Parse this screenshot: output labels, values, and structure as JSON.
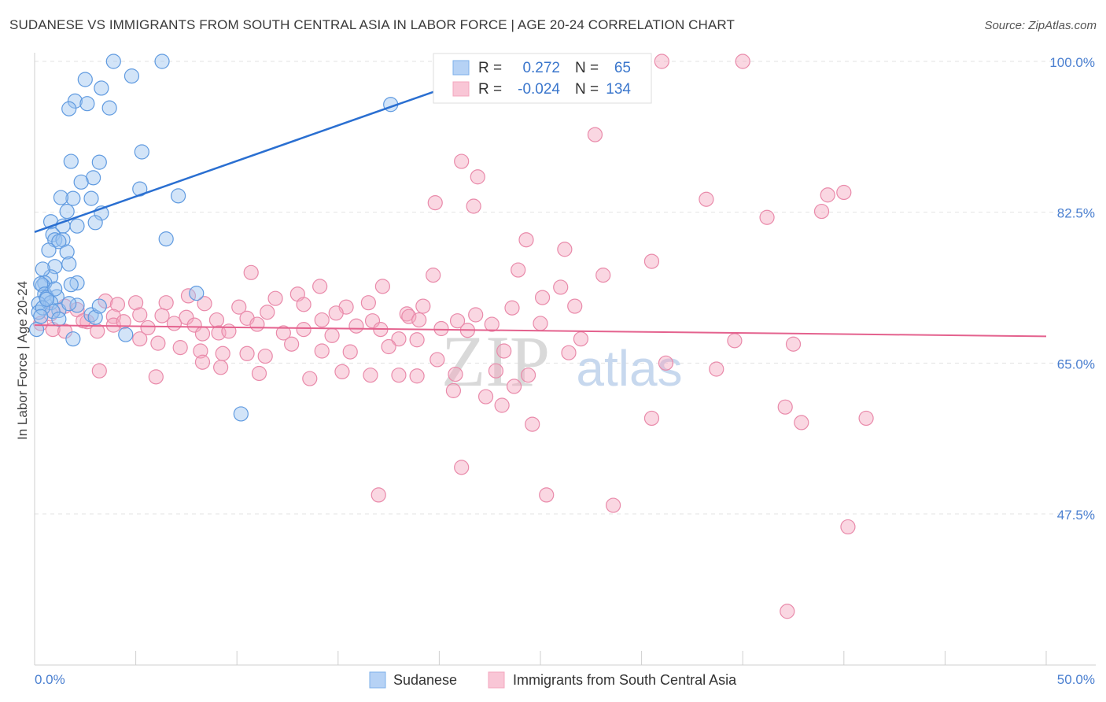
{
  "title": "SUDANESE VS IMMIGRANTS FROM SOUTH CENTRAL ASIA IN LABOR FORCE | AGE 20-24 CORRELATION CHART",
  "source": "Source: ZipAtlas.com",
  "watermark": {
    "zip": "ZIP",
    "atlas": "atlas"
  },
  "chart_data": {
    "type": "scatter",
    "title": "SUDANESE VS IMMIGRANTS FROM SOUTH CENTRAL ASIA IN LABOR FORCE | AGE 20-24 CORRELATION CHART",
    "ylabel": "In Labor Force | Age 20-24",
    "xlim": [
      0,
      50
    ],
    "ylim": [
      31,
      103
    ],
    "x_tick_labels": [
      "0.0%",
      "50.0%"
    ],
    "y_ticks": [
      47.5,
      65.0,
      82.5,
      100.0
    ],
    "y_tick_labels": [
      "47.5%",
      "65.0%",
      "82.5%",
      "100.0%"
    ],
    "grid": "horizontal dashed",
    "legend_position": "top-center",
    "colors": {
      "blue": "#7eb0ea",
      "blue_line": "#2a6fd1",
      "pink": "#f4a7bf",
      "pink_line": "#e4628e",
      "tick": "#4a7fd0"
    },
    "stats": [
      {
        "r_label": "R =",
        "r": "0.272",
        "n_label": "N =",
        "n": "65"
      },
      {
        "r_label": "R =",
        "r": "-0.024",
        "n_label": "N =",
        "n": "134"
      }
    ],
    "series": [
      {
        "name": "Sudanese",
        "color": "#7eb0ea",
        "trend": {
          "x": [
            0,
            20
          ],
          "y": 80.2,
          "y_end": 96.7
        },
        "points": [
          [
            3.9,
            100
          ],
          [
            6.3,
            100
          ],
          [
            2.5,
            97.9
          ],
          [
            4.8,
            98.3
          ],
          [
            3.3,
            96.9
          ],
          [
            2.0,
            95.4
          ],
          [
            1.7,
            94.5
          ],
          [
            2.6,
            95.1
          ],
          [
            3.7,
            94.6
          ],
          [
            17.6,
            95.0
          ],
          [
            5.3,
            89.5
          ],
          [
            1.8,
            88.4
          ],
          [
            3.2,
            88.3
          ],
          [
            2.9,
            86.5
          ],
          [
            2.3,
            86.0
          ],
          [
            5.2,
            85.2
          ],
          [
            7.1,
            84.4
          ],
          [
            1.9,
            84.1
          ],
          [
            1.3,
            84.2
          ],
          [
            2.8,
            84.1
          ],
          [
            1.6,
            82.6
          ],
          [
            3.3,
            82.4
          ],
          [
            3.0,
            81.3
          ],
          [
            0.8,
            81.4
          ],
          [
            1.4,
            80.9
          ],
          [
            2.1,
            80.9
          ],
          [
            0.9,
            79.9
          ],
          [
            6.5,
            79.4
          ],
          [
            1.0,
            79.3
          ],
          [
            1.4,
            79.3
          ],
          [
            1.2,
            79.1
          ],
          [
            0.7,
            78.1
          ],
          [
            1.6,
            77.9
          ],
          [
            1.7,
            76.5
          ],
          [
            1.0,
            76.2
          ],
          [
            0.8,
            75.0
          ],
          [
            0.4,
            75.9
          ],
          [
            0.5,
            74.3
          ],
          [
            2.1,
            74.3
          ],
          [
            0.4,
            74.0
          ],
          [
            0.3,
            74.2
          ],
          [
            8.0,
            73.1
          ],
          [
            0.5,
            73.0
          ],
          [
            1.1,
            72.7
          ],
          [
            0.6,
            72.6
          ],
          [
            0.8,
            72.0
          ],
          [
            0.2,
            71.9
          ],
          [
            1.2,
            71.1
          ],
          [
            2.1,
            71.7
          ],
          [
            0.9,
            71.0
          ],
          [
            1.7,
            71.9
          ],
          [
            1.2,
            70.1
          ],
          [
            2.8,
            70.6
          ],
          [
            0.2,
            70.9
          ],
          [
            0.4,
            71.4
          ],
          [
            3.0,
            70.3
          ],
          [
            4.5,
            68.3
          ],
          [
            1.9,
            67.8
          ],
          [
            0.1,
            68.9
          ],
          [
            10.2,
            59.1
          ],
          [
            1.0,
            73.6
          ],
          [
            0.6,
            72.4
          ],
          [
            1.8,
            74.1
          ],
          [
            3.2,
            71.6
          ],
          [
            0.3,
            70.4
          ]
        ]
      },
      {
        "name": "Immigrants from South Central Asia",
        "color": "#f4a7bf",
        "trend": {
          "x": [
            0,
            50
          ],
          "y": 69.4,
          "y_end": 68.1
        },
        "points": [
          [
            24.6,
            100
          ],
          [
            31.0,
            100
          ],
          [
            35.0,
            100
          ],
          [
            27.7,
            91.5
          ],
          [
            21.1,
            88.4
          ],
          [
            21.9,
            86.6
          ],
          [
            40.0,
            84.8
          ],
          [
            39.2,
            84.5
          ],
          [
            33.2,
            84.0
          ],
          [
            19.8,
            83.6
          ],
          [
            21.7,
            83.2
          ],
          [
            38.9,
            82.6
          ],
          [
            36.2,
            81.9
          ],
          [
            24.3,
            79.3
          ],
          [
            26.2,
            78.2
          ],
          [
            30.5,
            76.8
          ],
          [
            23.9,
            75.8
          ],
          [
            28.1,
            75.2
          ],
          [
            10.7,
            75.5
          ],
          [
            19.7,
            75.2
          ],
          [
            14.1,
            73.9
          ],
          [
            17.2,
            73.9
          ],
          [
            25.1,
            72.6
          ],
          [
            26.0,
            73.8
          ],
          [
            7.6,
            72.8
          ],
          [
            13.0,
            73.0
          ],
          [
            3.5,
            72.2
          ],
          [
            4.1,
            71.8
          ],
          [
            5.0,
            72.0
          ],
          [
            6.5,
            72.0
          ],
          [
            8.4,
            71.9
          ],
          [
            10.1,
            71.5
          ],
          [
            11.9,
            72.5
          ],
          [
            13.3,
            71.8
          ],
          [
            15.4,
            71.5
          ],
          [
            16.5,
            72.0
          ],
          [
            18.4,
            70.7
          ],
          [
            19.2,
            71.6
          ],
          [
            23.6,
            71.4
          ],
          [
            26.7,
            71.6
          ],
          [
            1.5,
            71.6
          ],
          [
            2.1,
            71.2
          ],
          [
            3.9,
            70.4
          ],
          [
            5.2,
            70.6
          ],
          [
            6.3,
            70.5
          ],
          [
            7.5,
            70.3
          ],
          [
            9.0,
            70.0
          ],
          [
            10.5,
            70.2
          ],
          [
            11.5,
            70.9
          ],
          [
            14.2,
            70.0
          ],
          [
            14.9,
            70.8
          ],
          [
            16.7,
            69.9
          ],
          [
            18.5,
            70.4
          ],
          [
            19.0,
            70.0
          ],
          [
            20.9,
            69.9
          ],
          [
            21.8,
            70.6
          ],
          [
            0.8,
            70.7
          ],
          [
            2.6,
            69.8
          ],
          [
            3.9,
            69.4
          ],
          [
            4.4,
            69.8
          ],
          [
            5.6,
            69.1
          ],
          [
            6.9,
            69.6
          ],
          [
            7.9,
            69.4
          ],
          [
            8.3,
            68.4
          ],
          [
            9.1,
            68.5
          ],
          [
            9.6,
            68.7
          ],
          [
            11.0,
            69.5
          ],
          [
            12.3,
            68.5
          ],
          [
            13.3,
            68.9
          ],
          [
            14.7,
            68.2
          ],
          [
            15.9,
            69.3
          ],
          [
            17.1,
            68.9
          ],
          [
            18.0,
            67.8
          ],
          [
            18.9,
            67.7
          ],
          [
            20.1,
            69.0
          ],
          [
            21.4,
            68.8
          ],
          [
            22.6,
            69.5
          ],
          [
            25.0,
            69.6
          ],
          [
            27.0,
            67.8
          ],
          [
            0.3,
            69.6
          ],
          [
            0.9,
            68.9
          ],
          [
            1.5,
            68.7
          ],
          [
            2.4,
            69.9
          ],
          [
            3.1,
            68.7
          ],
          [
            5.2,
            67.8
          ],
          [
            6.1,
            67.3
          ],
          [
            7.2,
            66.8
          ],
          [
            8.2,
            66.4
          ],
          [
            9.3,
            66.1
          ],
          [
            10.5,
            66.1
          ],
          [
            11.4,
            65.8
          ],
          [
            12.7,
            67.2
          ],
          [
            14.2,
            66.4
          ],
          [
            15.6,
            66.3
          ],
          [
            17.5,
            66.9
          ],
          [
            19.9,
            65.4
          ],
          [
            23.2,
            66.4
          ],
          [
            26.4,
            66.2
          ],
          [
            34.6,
            67.6
          ],
          [
            37.5,
            67.2
          ],
          [
            31.2,
            65.0
          ],
          [
            33.7,
            64.3
          ],
          [
            22.8,
            64.1
          ],
          [
            8.3,
            65.1
          ],
          [
            9.2,
            64.5
          ],
          [
            3.2,
            64.1
          ],
          [
            18.0,
            63.6
          ],
          [
            18.9,
            63.5
          ],
          [
            20.8,
            63.7
          ],
          [
            24.4,
            63.6
          ],
          [
            11.1,
            63.8
          ],
          [
            13.6,
            63.2
          ],
          [
            15.2,
            64.0
          ],
          [
            16.6,
            63.6
          ],
          [
            6.0,
            63.4
          ],
          [
            20.7,
            61.8
          ],
          [
            23.7,
            62.3
          ],
          [
            22.3,
            61.1
          ],
          [
            23.1,
            60.1
          ],
          [
            24.6,
            57.9
          ],
          [
            30.5,
            58.6
          ],
          [
            37.1,
            59.9
          ],
          [
            37.9,
            58.1
          ],
          [
            41.1,
            58.6
          ],
          [
            21.1,
            52.9
          ],
          [
            17.0,
            49.7
          ],
          [
            25.3,
            49.7
          ],
          [
            28.6,
            48.5
          ],
          [
            40.2,
            46.0
          ],
          [
            37.2,
            36.2
          ]
        ]
      }
    ],
    "legend": [
      "Sudanese",
      "Immigrants from South Central Asia"
    ]
  }
}
